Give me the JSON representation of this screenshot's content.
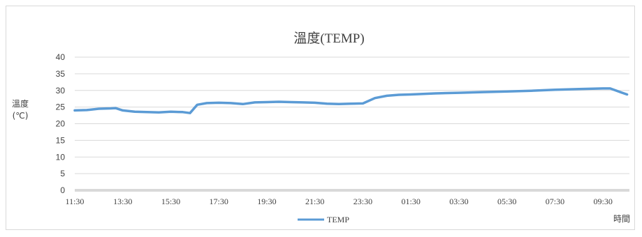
{
  "chart_data": {
    "type": "line",
    "title": "溫度(TEMP)",
    "ylabel_line1": "溫度",
    "ylabel_line2": "(℃)",
    "xlabel": "時間",
    "ylim": [
      0,
      40
    ],
    "yticks": [
      0,
      5,
      10,
      15,
      20,
      25,
      30,
      35,
      40
    ],
    "xticks": [
      "11:30",
      "13:30",
      "15:30",
      "17:30",
      "19:30",
      "21:30",
      "23:30",
      "01:30",
      "03:30",
      "05:30",
      "07:30",
      "09:30"
    ],
    "grid": true,
    "legend_position": "bottom",
    "series": [
      {
        "name": "TEMP",
        "color": "#5b9bd5",
        "x_hours": [
          0,
          0.5,
          1,
          1.5,
          1.7,
          2,
          2.5,
          3,
          3.5,
          4,
          4.5,
          4.8,
          5.1,
          5.5,
          6,
          6.5,
          7,
          7.5,
          8,
          8.5,
          9,
          9.5,
          10,
          10.5,
          11,
          11.5,
          12,
          12.5,
          13,
          13.5,
          14,
          15,
          16,
          17,
          18,
          19,
          20,
          21,
          22,
          22.3,
          22.8,
          23
        ],
        "values": [
          24.0,
          24.1,
          24.5,
          24.6,
          24.7,
          24.0,
          23.6,
          23.5,
          23.4,
          23.6,
          23.5,
          23.2,
          25.7,
          26.2,
          26.3,
          26.2,
          25.9,
          26.4,
          26.5,
          26.6,
          26.5,
          26.4,
          26.3,
          26.0,
          25.9,
          26.0,
          26.1,
          27.7,
          28.4,
          28.7,
          28.8,
          29.1,
          29.3,
          29.5,
          29.7,
          29.9,
          30.2,
          30.4,
          30.6,
          30.6,
          29.3,
          28.8
        ]
      }
    ]
  }
}
